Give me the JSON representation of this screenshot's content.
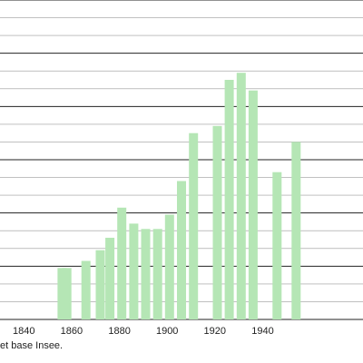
{
  "chart_data": {
    "type": "bar",
    "grid": true,
    "bar_color": "#b5e6b5",
    "grid_color": "#222222",
    "ylim": [
      0,
      18
    ],
    "xlim": [
      1830,
      1982
    ],
    "x_ticks": [
      1840,
      1860,
      1880,
      1900,
      1920,
      1940
    ],
    "x_tick_labels": [
      "1840",
      "1860",
      "1880",
      "1900",
      "1920",
      "1940"
    ],
    "x": [
      1856,
      1858,
      1866,
      1872,
      1876,
      1881,
      1886,
      1891,
      1896,
      1901,
      1906,
      1911,
      1921,
      1926,
      1931,
      1936,
      1946,
      1954
    ],
    "values": [
      2.9,
      2.9,
      3.3,
      3.9,
      4.6,
      6.3,
      5.4,
      5.1,
      5.1,
      5.9,
      7.8,
      10.5,
      10.9,
      13.5,
      13.9,
      12.9,
      8.3,
      10.0
    ]
  },
  "source_note": "et base Insee."
}
